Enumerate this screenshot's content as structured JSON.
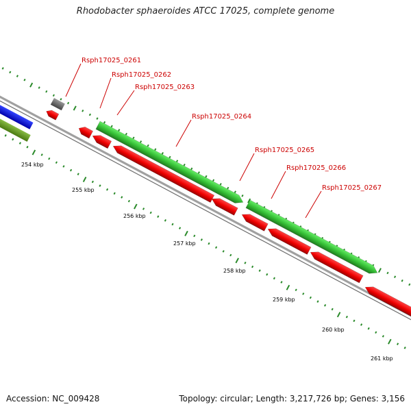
{
  "title": "Rhodobacter sphaeroides ATCC 17025, complete genome",
  "footer": {
    "accession_label": "Accession:",
    "accession": "NC_009428",
    "topology_label": "Topology:",
    "topology": "circular",
    "length_label": "Length:",
    "length": "3,217,726 bp",
    "genes_label": "Genes:",
    "genes": "3,156"
  },
  "colors": {
    "forward_gene": "#33cc33",
    "forward_gene_dark": "#228822",
    "reverse_gene": "#ee0000",
    "reverse_gene_dark": "#aa0000",
    "backbone": "#888888",
    "tick": "#2a8a2a",
    "blue_feature": "#0000ee",
    "olive_feature": "#669922",
    "gray_feature": "#666666",
    "label": "#cc0000"
  },
  "ruler": [
    {
      "label": "254 kbp",
      "pos": 254
    },
    {
      "label": "255 kbp",
      "pos": 255
    },
    {
      "label": "256 kbp",
      "pos": 256
    },
    {
      "label": "257 kbp",
      "pos": 257
    },
    {
      "label": "258 kbp",
      "pos": 258
    },
    {
      "label": "259 kbp",
      "pos": 259
    },
    {
      "label": "260 kbp",
      "pos": 260
    },
    {
      "label": "261 kbp",
      "pos": 261
    }
  ],
  "genes": [
    {
      "locus": "Rsph17025_0261",
      "strand": "reverse",
      "color_key": "reverse_gene"
    },
    {
      "locus": "Rsph17025_0262",
      "strand": "reverse",
      "color_key": "reverse_gene"
    },
    {
      "locus": "Rsph17025_0263",
      "strand": "forward",
      "color_key": "forward_gene"
    },
    {
      "locus": "Rsph17025_0264",
      "strand": "reverse",
      "color_key": "reverse_gene"
    },
    {
      "locus": "Rsph17025_0265",
      "strand": "reverse",
      "color_key": "reverse_gene"
    },
    {
      "locus": "Rsph17025_0266",
      "strand": "forward",
      "color_key": "forward_gene"
    },
    {
      "locus": "Rsph17025_0267",
      "strand": "reverse",
      "color_key": "reverse_gene"
    }
  ]
}
